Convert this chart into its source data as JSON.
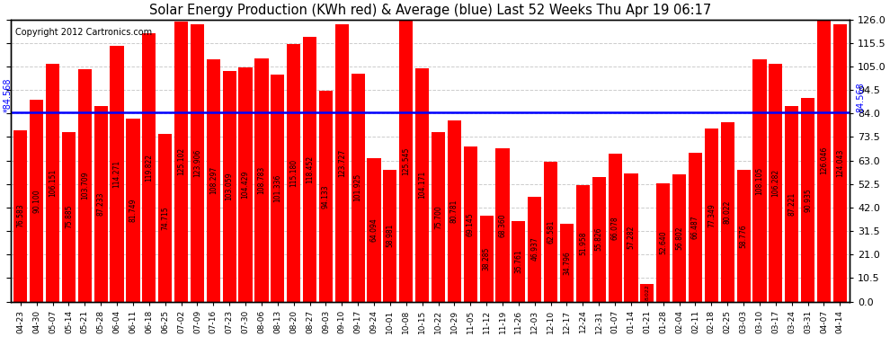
{
  "title": "Solar Energy Production (KWh red) & Average (blue) Last 52 Weeks Thu Apr 19 06:17",
  "copyright": "Copyright 2012 Cartronics.com",
  "average_value": 84.568,
  "bar_color": "#ff0000",
  "average_line_color": "#0000ff",
  "background_color": "#ffffff",
  "plot_bg_color": "#ffffff",
  "ylim": [
    0,
    126.0
  ],
  "yticks": [
    0.0,
    10.5,
    21.0,
    31.5,
    42.0,
    52.5,
    63.0,
    73.5,
    84.0,
    94.5,
    105.0,
    115.5,
    126.0
  ],
  "categories": [
    "04-23",
    "04-30",
    "05-07",
    "05-14",
    "05-21",
    "05-28",
    "06-04",
    "06-11",
    "06-18",
    "06-25",
    "07-02",
    "07-09",
    "07-16",
    "07-23",
    "07-30",
    "08-06",
    "08-13",
    "08-20",
    "08-27",
    "09-03",
    "09-10",
    "09-17",
    "09-24",
    "10-01",
    "10-08",
    "10-15",
    "10-22",
    "10-29",
    "11-05",
    "11-12",
    "11-19",
    "11-26",
    "12-03",
    "12-10",
    "12-17",
    "12-24",
    "12-31",
    "01-07",
    "01-14",
    "01-21",
    "01-28",
    "02-04",
    "02-11",
    "02-18",
    "02-25",
    "03-03",
    "03-10",
    "03-17",
    "03-24",
    "03-31",
    "04-07",
    "04-14"
  ],
  "values": [
    76.583,
    90.1,
    106.151,
    75.885,
    103.709,
    87.233,
    114.271,
    81.749,
    119.822,
    74.715,
    125.102,
    123.906,
    108.297,
    103.059,
    104.429,
    108.783,
    101.336,
    115.18,
    118.452,
    94.133,
    123.727,
    101.925,
    64.094,
    58.981,
    125.545,
    104.171,
    75.7,
    80.781,
    69.145,
    38.285,
    68.36,
    35.761,
    46.937,
    62.581,
    34.796,
    51.958,
    55.826,
    66.078,
    57.282,
    8.022,
    52.64,
    56.802,
    66.487,
    77.349,
    80.022,
    58.776,
    108.105,
    106.282,
    87.221,
    90.935,
    126.046,
    124.043
  ],
  "bar_values_display": [
    "76.583",
    "90.100",
    "106.151",
    "75.885",
    "103.709",
    "87.233",
    "114.271",
    "81.749",
    "119.822",
    "74.715",
    "125.102",
    "123.906",
    "108.297",
    "103.059",
    "104.429",
    "108.783",
    "101.336",
    "115.180",
    "118.452",
    "94.133",
    "123.727",
    "101.925",
    "64.094",
    "58.981",
    "125.545",
    "104.171",
    "75.700",
    "80.781",
    "69.145",
    "38.285",
    "68.360",
    "35.761",
    "46.937",
    "62.581",
    "34.796",
    "51.958",
    "55.826",
    "66.078",
    "57.282",
    "8.022",
    "52.640",
    "56.802",
    "66.487",
    "77.349",
    "80.022",
    "58.776",
    "108.105",
    "106.282",
    "87.221",
    "90.935",
    "126.046",
    "124.043"
  ]
}
